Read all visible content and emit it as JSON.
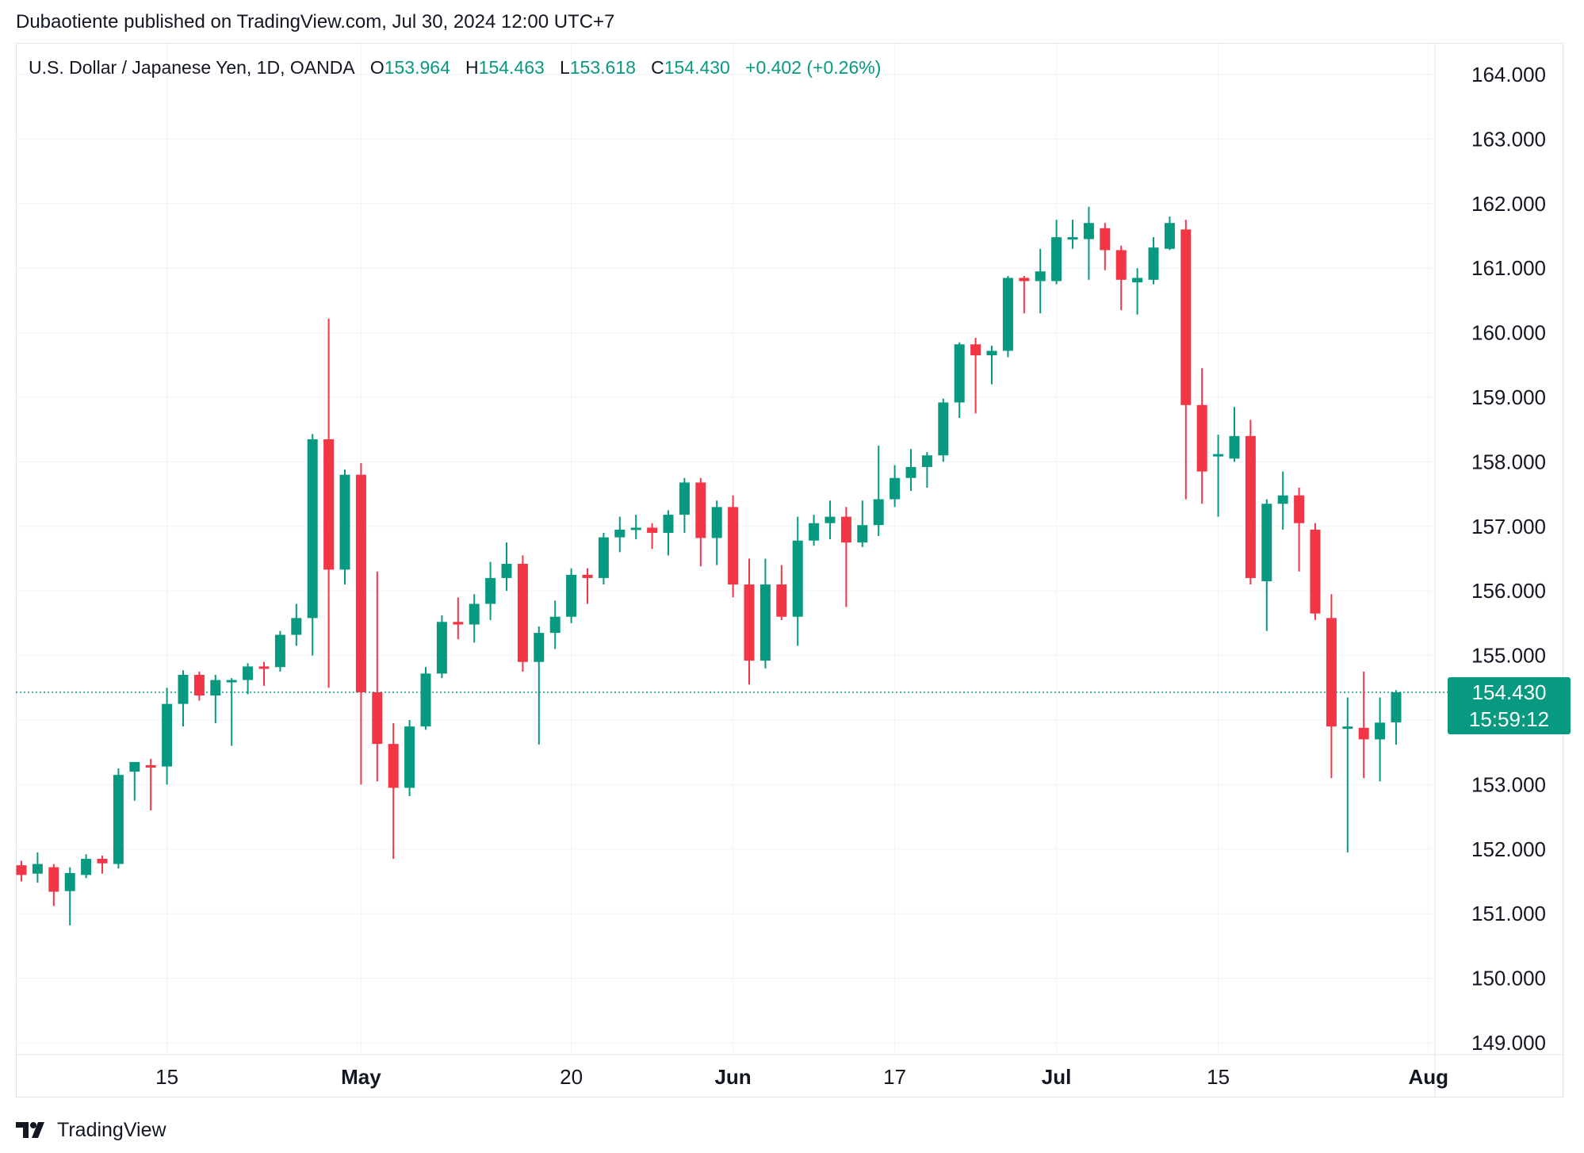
{
  "header": {
    "published_line": "Dubaotiente published on TradingView.com, Jul 30, 2024 12:00 UTC+7"
  },
  "legend": {
    "symbol": "U.S. Dollar / Japanese Yen, 1D, OANDA",
    "o_label": "O",
    "o_value": "153.964",
    "h_label": "H",
    "h_value": "154.463",
    "l_label": "L",
    "l_value": "153.618",
    "c_label": "C",
    "c_value": "154.430",
    "change": "+0.402 (+0.26%)"
  },
  "price_tag": {
    "price": "154.430",
    "countdown": "15:59:12"
  },
  "footer": {
    "brand": "TradingView",
    "logo_icon": "tradingview-logo-icon"
  },
  "colors": {
    "up": "#089981",
    "down": "#f23645",
    "grid": "#f0f3fa",
    "text": "#131722",
    "last_price_line": "#089981"
  },
  "chart_data": {
    "type": "candlestick",
    "symbol": "USDJPY",
    "interval": "1D",
    "ylim": [
      148.9,
      164.6
    ],
    "y_ticks": [
      "149.000",
      "150.000",
      "151.000",
      "152.000",
      "153.000",
      "154.000",
      "155.000",
      "156.000",
      "157.000",
      "158.000",
      "159.000",
      "160.000",
      "161.000",
      "162.000",
      "163.000",
      "164.000"
    ],
    "x_ticks": [
      {
        "label": "15",
        "index": 9,
        "bold": false
      },
      {
        "label": "May",
        "index": 21,
        "bold": true
      },
      {
        "label": "20",
        "index": 34,
        "bold": false
      },
      {
        "label": "Jun",
        "index": 44,
        "bold": true
      },
      {
        "label": "17",
        "index": 54,
        "bold": false
      },
      {
        "label": "Jul",
        "index": 64,
        "bold": true
      },
      {
        "label": "15",
        "index": 74,
        "bold": false
      },
      {
        "label": "Aug",
        "index": 87,
        "bold": true
      }
    ],
    "last_price": 154.43,
    "candles": [
      {
        "o": 151.75,
        "h": 151.82,
        "l": 151.5,
        "c": 151.6
      },
      {
        "o": 151.62,
        "h": 151.95,
        "l": 151.48,
        "c": 151.77
      },
      {
        "o": 151.72,
        "h": 151.77,
        "l": 151.12,
        "c": 151.34
      },
      {
        "o": 151.35,
        "h": 151.72,
        "l": 150.82,
        "c": 151.63
      },
      {
        "o": 151.6,
        "h": 151.92,
        "l": 151.55,
        "c": 151.85
      },
      {
        "o": 151.85,
        "h": 151.9,
        "l": 151.62,
        "c": 151.78
      },
      {
        "o": 151.77,
        "h": 153.25,
        "l": 151.7,
        "c": 153.15
      },
      {
        "o": 153.2,
        "h": 153.32,
        "l": 152.75,
        "c": 153.35
      },
      {
        "o": 153.3,
        "h": 153.4,
        "l": 152.6,
        "c": 153.28
      },
      {
        "o": 153.28,
        "h": 154.5,
        "l": 153.0,
        "c": 154.25
      },
      {
        "o": 154.25,
        "h": 154.77,
        "l": 153.9,
        "c": 154.7
      },
      {
        "o": 154.7,
        "h": 154.75,
        "l": 154.3,
        "c": 154.38
      },
      {
        "o": 154.38,
        "h": 154.7,
        "l": 153.95,
        "c": 154.62
      },
      {
        "o": 154.62,
        "h": 154.65,
        "l": 153.6,
        "c": 154.62
      },
      {
        "o": 154.62,
        "h": 154.88,
        "l": 154.4,
        "c": 154.83
      },
      {
        "o": 154.83,
        "h": 154.9,
        "l": 154.53,
        "c": 154.82
      },
      {
        "o": 154.82,
        "h": 155.38,
        "l": 154.75,
        "c": 155.32
      },
      {
        "o": 155.32,
        "h": 155.8,
        "l": 155.15,
        "c": 155.58
      },
      {
        "o": 155.58,
        "h": 158.43,
        "l": 155.0,
        "c": 158.35
      },
      {
        "o": 158.35,
        "h": 160.22,
        "l": 154.5,
        "c": 156.33
      },
      {
        "o": 156.33,
        "h": 157.88,
        "l": 156.1,
        "c": 157.8
      },
      {
        "o": 157.8,
        "h": 157.98,
        "l": 153.0,
        "c": 154.43
      },
      {
        "o": 154.43,
        "h": 156.3,
        "l": 153.05,
        "c": 153.63
      },
      {
        "o": 153.63,
        "h": 153.95,
        "l": 151.85,
        "c": 152.95
      },
      {
        "o": 152.95,
        "h": 154.0,
        "l": 152.82,
        "c": 153.9
      },
      {
        "o": 153.9,
        "h": 154.82,
        "l": 153.85,
        "c": 154.72
      },
      {
        "o": 154.72,
        "h": 155.62,
        "l": 154.65,
        "c": 155.52
      },
      {
        "o": 155.52,
        "h": 155.9,
        "l": 155.25,
        "c": 155.48
      },
      {
        "o": 155.48,
        "h": 155.95,
        "l": 155.2,
        "c": 155.8
      },
      {
        "o": 155.8,
        "h": 156.45,
        "l": 155.55,
        "c": 156.2
      },
      {
        "o": 156.2,
        "h": 156.75,
        "l": 156.0,
        "c": 156.42
      },
      {
        "o": 156.42,
        "h": 156.55,
        "l": 154.75,
        "c": 154.9
      },
      {
        "o": 154.9,
        "h": 155.45,
        "l": 153.62,
        "c": 155.35
      },
      {
        "o": 155.35,
        "h": 155.85,
        "l": 155.1,
        "c": 155.6
      },
      {
        "o": 155.6,
        "h": 156.35,
        "l": 155.5,
        "c": 156.25
      },
      {
        "o": 156.25,
        "h": 156.35,
        "l": 155.8,
        "c": 156.2
      },
      {
        "o": 156.2,
        "h": 156.9,
        "l": 156.1,
        "c": 156.83
      },
      {
        "o": 156.83,
        "h": 157.15,
        "l": 156.6,
        "c": 156.95
      },
      {
        "o": 156.95,
        "h": 157.18,
        "l": 156.8,
        "c": 156.98
      },
      {
        "o": 156.98,
        "h": 157.05,
        "l": 156.65,
        "c": 156.9
      },
      {
        "o": 156.9,
        "h": 157.25,
        "l": 156.55,
        "c": 157.18
      },
      {
        "o": 157.18,
        "h": 157.75,
        "l": 156.9,
        "c": 157.68
      },
      {
        "o": 157.68,
        "h": 157.75,
        "l": 156.38,
        "c": 156.82
      },
      {
        "o": 156.82,
        "h": 157.4,
        "l": 156.4,
        "c": 157.3
      },
      {
        "o": 157.3,
        "h": 157.48,
        "l": 155.9,
        "c": 156.1
      },
      {
        "o": 156.1,
        "h": 156.5,
        "l": 154.55,
        "c": 154.92
      },
      {
        "o": 154.92,
        "h": 156.5,
        "l": 154.8,
        "c": 156.1
      },
      {
        "o": 156.1,
        "h": 156.4,
        "l": 155.55,
        "c": 155.6
      },
      {
        "o": 155.6,
        "h": 157.15,
        "l": 155.15,
        "c": 156.78
      },
      {
        "o": 156.78,
        "h": 157.18,
        "l": 156.7,
        "c": 157.05
      },
      {
        "o": 157.05,
        "h": 157.4,
        "l": 156.8,
        "c": 157.15
      },
      {
        "o": 157.15,
        "h": 157.3,
        "l": 155.75,
        "c": 156.75
      },
      {
        "o": 156.75,
        "h": 157.4,
        "l": 156.68,
        "c": 157.02
      },
      {
        "o": 157.02,
        "h": 158.25,
        "l": 156.85,
        "c": 157.42
      },
      {
        "o": 157.42,
        "h": 157.95,
        "l": 157.3,
        "c": 157.75
      },
      {
        "o": 157.75,
        "h": 158.2,
        "l": 157.55,
        "c": 157.92
      },
      {
        "o": 157.92,
        "h": 158.15,
        "l": 157.6,
        "c": 158.1
      },
      {
        "o": 158.1,
        "h": 158.98,
        "l": 158.0,
        "c": 158.92
      },
      {
        "o": 158.92,
        "h": 159.85,
        "l": 158.68,
        "c": 159.82
      },
      {
        "o": 159.82,
        "h": 159.92,
        "l": 158.75,
        "c": 159.65
      },
      {
        "o": 159.65,
        "h": 159.8,
        "l": 159.2,
        "c": 159.72
      },
      {
        "o": 159.72,
        "h": 160.88,
        "l": 159.62,
        "c": 160.85
      },
      {
        "o": 160.85,
        "h": 160.88,
        "l": 160.3,
        "c": 160.8
      },
      {
        "o": 160.8,
        "h": 161.3,
        "l": 160.3,
        "c": 160.95
      },
      {
        "o": 160.8,
        "h": 161.75,
        "l": 160.75,
        "c": 161.48
      },
      {
        "o": 161.48,
        "h": 161.75,
        "l": 161.3,
        "c": 161.48
      },
      {
        "o": 161.45,
        "h": 161.95,
        "l": 160.82,
        "c": 161.7
      },
      {
        "o": 161.62,
        "h": 161.7,
        "l": 160.97,
        "c": 161.28
      },
      {
        "o": 161.28,
        "h": 161.35,
        "l": 160.35,
        "c": 160.82
      },
      {
        "o": 160.78,
        "h": 161.0,
        "l": 160.28,
        "c": 160.85
      },
      {
        "o": 160.82,
        "h": 161.48,
        "l": 160.75,
        "c": 161.32
      },
      {
        "o": 161.3,
        "h": 161.8,
        "l": 161.28,
        "c": 161.7
      },
      {
        "o": 161.6,
        "h": 161.75,
        "l": 157.42,
        "c": 158.88
      },
      {
        "o": 158.88,
        "h": 159.45,
        "l": 157.35,
        "c": 157.85
      },
      {
        "o": 158.12,
        "h": 158.42,
        "l": 157.15,
        "c": 158.12
      },
      {
        "o": 158.05,
        "h": 158.85,
        "l": 158.0,
        "c": 158.4
      },
      {
        "o": 158.4,
        "h": 158.65,
        "l": 156.1,
        "c": 156.2
      },
      {
        "o": 156.15,
        "h": 157.42,
        "l": 155.38,
        "c": 157.35
      },
      {
        "o": 157.35,
        "h": 157.85,
        "l": 156.95,
        "c": 157.48
      },
      {
        "o": 157.48,
        "h": 157.6,
        "l": 156.3,
        "c": 157.05
      },
      {
        "o": 156.95,
        "h": 157.05,
        "l": 155.55,
        "c": 155.65
      },
      {
        "o": 155.58,
        "h": 155.95,
        "l": 153.1,
        "c": 153.9
      },
      {
        "o": 153.9,
        "h": 154.35,
        "l": 151.95,
        "c": 153.9
      },
      {
        "o": 153.88,
        "h": 154.75,
        "l": 153.1,
        "c": 153.7
      },
      {
        "o": 153.7,
        "h": 154.35,
        "l": 153.05,
        "c": 153.96
      },
      {
        "o": 153.964,
        "h": 154.463,
        "l": 153.618,
        "c": 154.43
      }
    ]
  }
}
